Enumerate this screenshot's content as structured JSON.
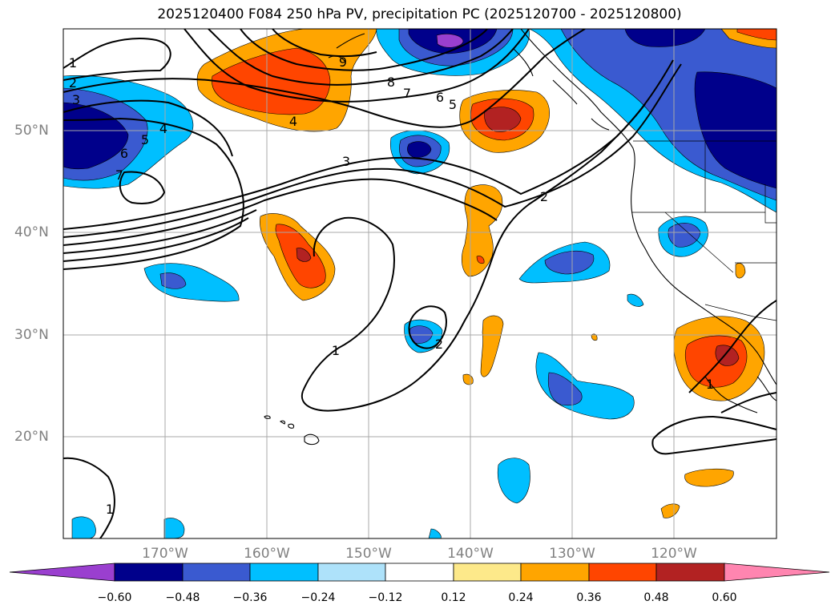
{
  "title": "2025120400 F084 250 hPa PV, precipitation PC (2025120700 - 2025120800)",
  "lat_labels": [
    "50°N",
    "40°N",
    "30°N",
    "20°N"
  ],
  "lon_labels": [
    "170°W",
    "160°W",
    "150°W",
    "140°W",
    "130°W",
    "120°W"
  ],
  "colorbar": {
    "tick_labels": [
      "−0.60",
      "−0.48",
      "−0.36",
      "−0.24",
      "−0.12",
      "0.12",
      "0.24",
      "0.36",
      "0.48",
      "0.60"
    ],
    "colors": [
      "#9a3fcf",
      "#00008b",
      "#3a5ad0",
      "#00bfff",
      "#aee2fa",
      "#ffffff",
      "#fde98a",
      "#ffa500",
      "#ff4500",
      "#b22222",
      "#ff85b0"
    ]
  },
  "pv_contour_labels": [
    "1",
    "2",
    "3",
    "4",
    "5",
    "6",
    "7",
    "8",
    "9"
  ],
  "shading_colors": {
    "neg_light": "#00bfff",
    "neg_mid": "#3a5ad0",
    "neg_dark": "#00008b",
    "neg_extreme": "#9a3fcf",
    "pos_light": "#ffa500",
    "pos_mid": "#ff4500",
    "pos_dark": "#b22222"
  }
}
